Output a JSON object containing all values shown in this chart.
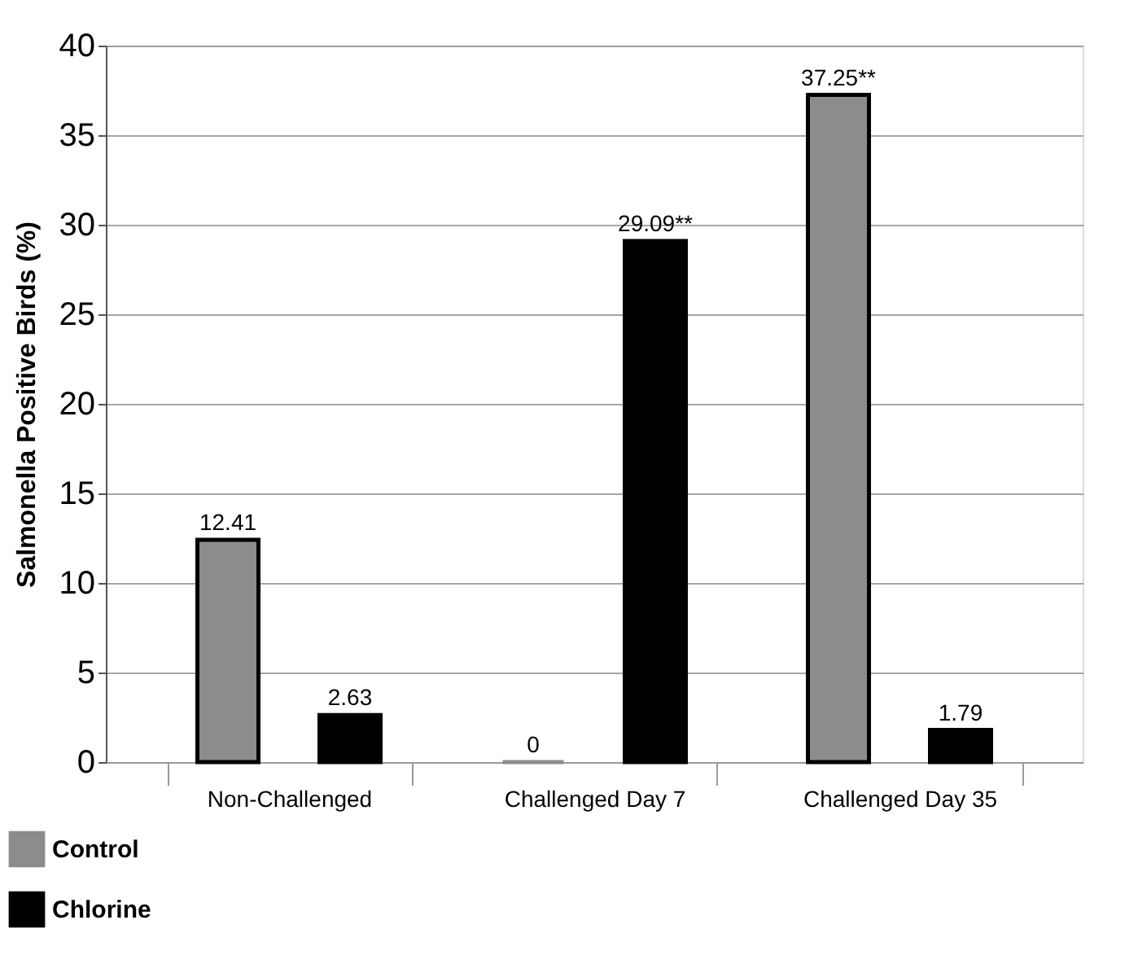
{
  "chart_data": {
    "type": "bar",
    "ylabel": "Salmonella Positive Birds (%)",
    "categories": [
      "Non-Challenged",
      "Challenged Day 7",
      "Challenged Day 35"
    ],
    "series": [
      {
        "name": "Control",
        "color": "#8c8c8c",
        "values": [
          12.41,
          0,
          37.25
        ],
        "value_labels": [
          "12.41",
          "0",
          "37.25**"
        ]
      },
      {
        "name": "Chlorine",
        "color": "#000000",
        "values": [
          2.63,
          29.09,
          1.79
        ],
        "value_labels": [
          "2.63",
          "29.09**",
          "1.79"
        ]
      }
    ],
    "ylim": [
      0,
      40
    ],
    "yticks": [
      0,
      5,
      10,
      15,
      20,
      25,
      30,
      35,
      40
    ],
    "grid": "y",
    "legend": "bottom left"
  }
}
